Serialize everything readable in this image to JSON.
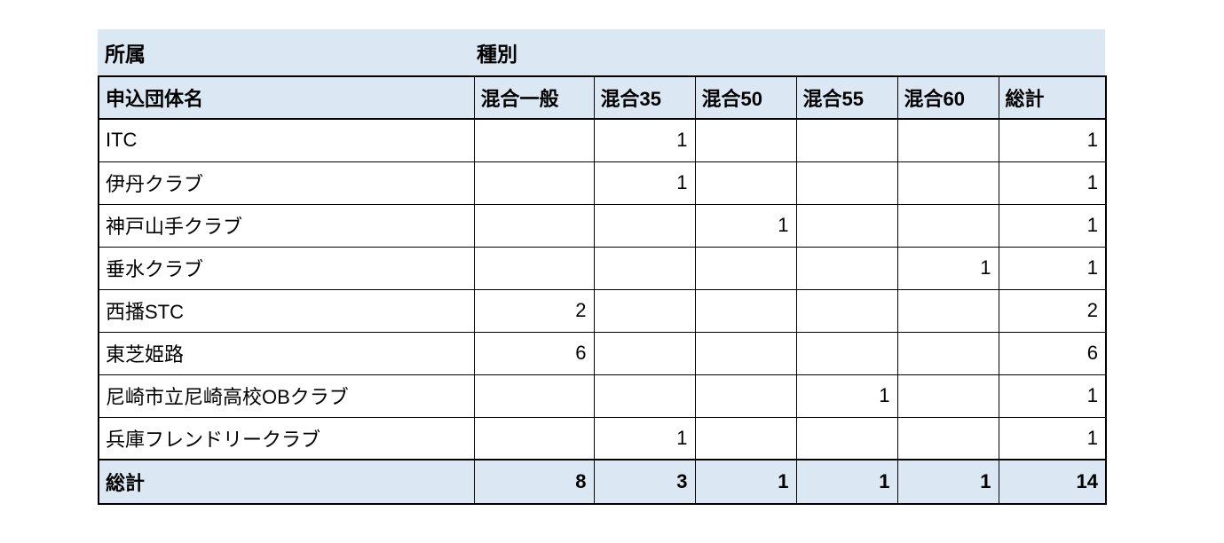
{
  "colors": {
    "header_fill": "#dbe7f3",
    "border": "#000000",
    "background": "#ffffff"
  },
  "filter_band": {
    "row_field_label": "所属",
    "column_field_label": "種別"
  },
  "pivot_table": {
    "name_header": "申込団体名",
    "column_headers": [
      "混合一般",
      "混合35",
      "混合50",
      "混合55",
      "混合60",
      "総計"
    ],
    "rows": [
      {
        "name": "ITC",
        "values": [
          "",
          "1",
          "",
          "",
          "",
          "1"
        ]
      },
      {
        "name": "伊丹クラブ",
        "values": [
          "",
          "1",
          "",
          "",
          "",
          "1"
        ]
      },
      {
        "name": "神戸山手クラブ",
        "values": [
          "",
          "",
          "1",
          "",
          "",
          "1"
        ]
      },
      {
        "name": "垂水クラブ",
        "values": [
          "",
          "",
          "",
          "",
          "1",
          "1"
        ]
      },
      {
        "name": "西播STC",
        "values": [
          "2",
          "",
          "",
          "",
          "",
          "2"
        ]
      },
      {
        "name": "東芝姫路",
        "values": [
          "6",
          "",
          "",
          "",
          "",
          "6"
        ]
      },
      {
        "name": "尼崎市立尼崎高校ОBクラブ",
        "values": [
          "",
          "",
          "",
          "1",
          "",
          "1"
        ]
      },
      {
        "name": "兵庫フレンドリークラブ",
        "values": [
          "",
          "1",
          "",
          "",
          "",
          "1"
        ]
      }
    ],
    "grand_total": {
      "name": "総計",
      "values": [
        "8",
        "3",
        "1",
        "1",
        "1",
        "14"
      ]
    }
  }
}
